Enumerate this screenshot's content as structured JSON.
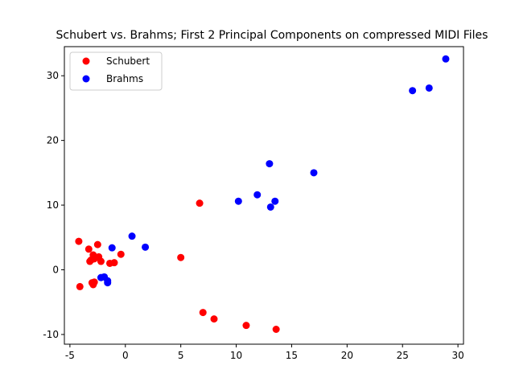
{
  "chart_data": {
    "type": "scatter",
    "title": "Schubert vs. Brahms; First 2 Principal Components on compressed MIDI Files",
    "xlabel": "",
    "ylabel": "",
    "xlim": [
      -5.5,
      30.5
    ],
    "ylim": [
      -11.5,
      34.5
    ],
    "xticks": [
      -5,
      0,
      5,
      10,
      15,
      20,
      25,
      30
    ],
    "yticks": [
      -10,
      0,
      10,
      20,
      30
    ],
    "grid": false,
    "legend": {
      "position": "top-left"
    },
    "series": [
      {
        "name": "Schubert",
        "color": "#ff0000",
        "points": [
          {
            "x": -4.2,
            "y": 4.4
          },
          {
            "x": -3.3,
            "y": 3.2
          },
          {
            "x": -2.5,
            "y": 3.9
          },
          {
            "x": -2.9,
            "y": 2.3
          },
          {
            "x": -3.1,
            "y": 1.5
          },
          {
            "x": -2.8,
            "y": 1.7
          },
          {
            "x": -2.4,
            "y": 2.0
          },
          {
            "x": -2.2,
            "y": 1.3
          },
          {
            "x": -3.2,
            "y": 1.3
          },
          {
            "x": -1.4,
            "y": 1.0
          },
          {
            "x": -1.0,
            "y": 1.1
          },
          {
            "x": -0.4,
            "y": 2.4
          },
          {
            "x": -4.1,
            "y": -2.6
          },
          {
            "x": -3.0,
            "y": -2.0
          },
          {
            "x": -2.8,
            "y": -1.9
          },
          {
            "x": -2.9,
            "y": -2.3
          },
          {
            "x": 5.0,
            "y": 1.9
          },
          {
            "x": 6.7,
            "y": 10.3
          },
          {
            "x": 7.0,
            "y": -6.6
          },
          {
            "x": 8.0,
            "y": -7.6
          },
          {
            "x": 10.9,
            "y": -8.6
          },
          {
            "x": 13.6,
            "y": -9.2
          }
        ]
      },
      {
        "name": "Brahms",
        "color": "#0000ff",
        "points": [
          {
            "x": -2.2,
            "y": -1.2
          },
          {
            "x": -1.9,
            "y": -1.1
          },
          {
            "x": -1.6,
            "y": -1.7
          },
          {
            "x": -1.6,
            "y": -2.0
          },
          {
            "x": -1.2,
            "y": 3.4
          },
          {
            "x": 0.6,
            "y": 5.2
          },
          {
            "x": 1.8,
            "y": 3.5
          },
          {
            "x": 10.2,
            "y": 10.6
          },
          {
            "x": 11.9,
            "y": 11.6
          },
          {
            "x": 13.1,
            "y": 9.7
          },
          {
            "x": 13.5,
            "y": 10.6
          },
          {
            "x": 13.0,
            "y": 16.4
          },
          {
            "x": 17.0,
            "y": 15.0
          },
          {
            "x": 25.9,
            "y": 27.7
          },
          {
            "x": 27.4,
            "y": 28.1
          },
          {
            "x": 28.9,
            "y": 32.6
          }
        ]
      }
    ]
  }
}
